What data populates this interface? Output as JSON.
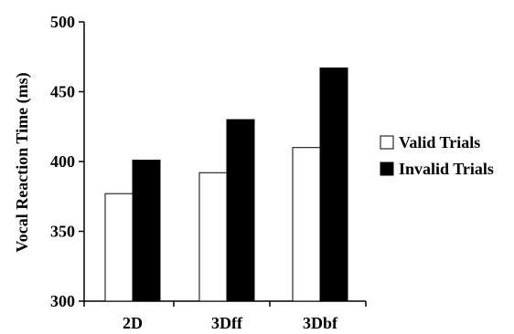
{
  "chart_data": {
    "type": "bar",
    "title": "",
    "xlabel": "",
    "ylabel": "Vocal Reaction Time (ms)",
    "ylim": [
      300,
      500
    ],
    "yticks": [
      300,
      350,
      400,
      450,
      500
    ],
    "categories": [
      "2D",
      "3Dff",
      "3Dbf"
    ],
    "series": [
      {
        "name": "Valid Trials",
        "color": "#ffffff",
        "values": [
          377,
          392,
          410
        ]
      },
      {
        "name": "Invalid Trials",
        "color": "#000000",
        "values": [
          401,
          430,
          467
        ]
      }
    ],
    "grid": false,
    "legend_position": "right"
  }
}
